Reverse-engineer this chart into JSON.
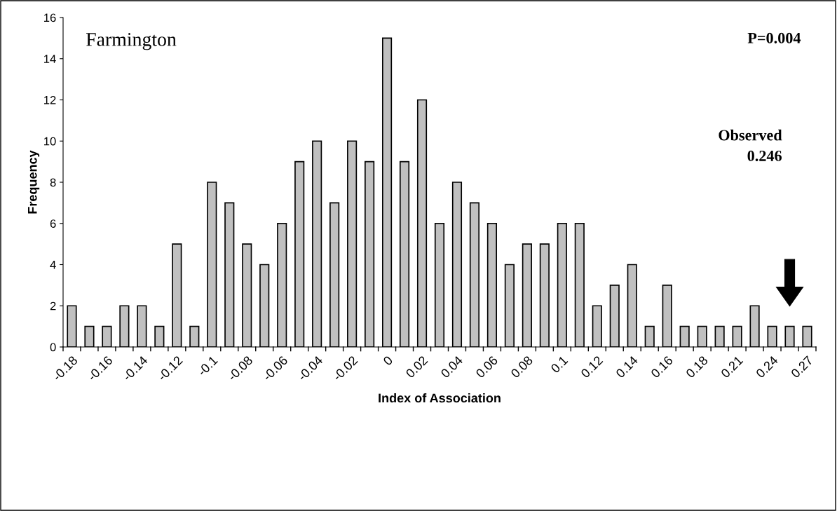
{
  "chart_data": {
    "type": "bar",
    "xlabel": "Index of Association",
    "ylabel": "Frequency",
    "categories": [
      "-0.18",
      null,
      "-0.16",
      null,
      "-0.14",
      null,
      "-0.12",
      null,
      "-0.1",
      null,
      "-0.08",
      null,
      "-0.06",
      null,
      "-0.04",
      null,
      "-0.02",
      null,
      "0",
      null,
      "0.02",
      null,
      "0.04",
      null,
      "0.06",
      null,
      "0.08",
      null,
      "0.1",
      null,
      "0.12",
      null,
      "0.14",
      null,
      "0.16",
      null,
      "0.18",
      null,
      "0.21",
      null,
      "0.24",
      null,
      "0.27"
    ],
    "values": [
      2,
      1,
      1,
      2,
      2,
      1,
      5,
      1,
      8,
      7,
      5,
      4,
      6,
      9,
      10,
      7,
      10,
      9,
      15,
      9,
      12,
      6,
      8,
      7,
      6,
      4,
      5,
      5,
      6,
      6,
      2,
      3,
      4,
      1,
      3,
      1,
      1,
      1,
      1,
      2,
      1,
      1,
      1
    ],
    "color": "#c0c0c0",
    "ylim": [
      0,
      16
    ],
    "yticks": [
      0,
      2,
      4,
      6,
      8,
      10,
      12,
      14,
      16
    ],
    "grid": false,
    "legend": false,
    "annotations": [
      "Farmington",
      "P=0.004",
      "Observed\n0.246"
    ]
  }
}
